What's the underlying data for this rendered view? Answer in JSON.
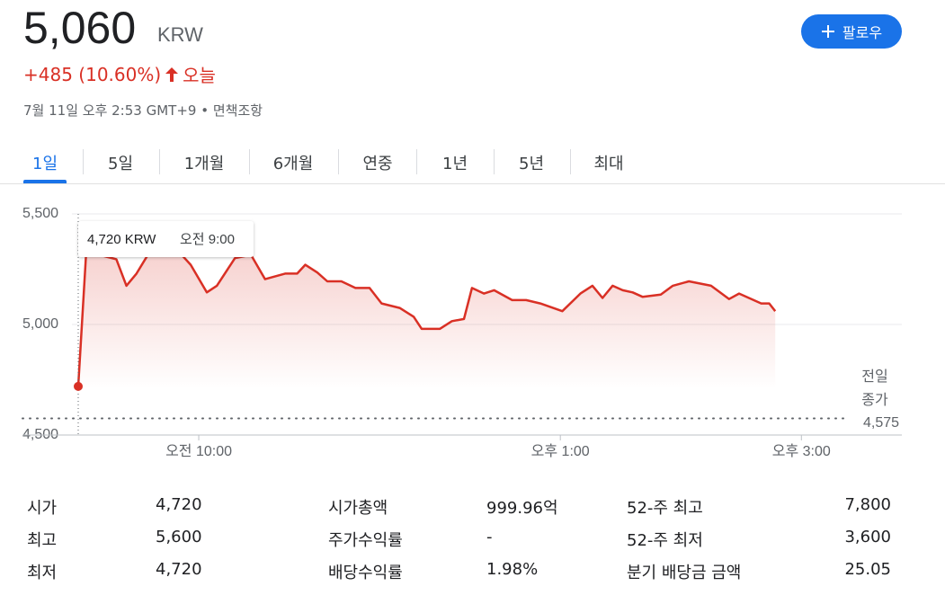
{
  "header": {
    "price": "5,060",
    "currency": "KRW",
    "change": "+485 (10.60%)",
    "period": "오늘",
    "timestamp": "7월 11일 오후 2:53 GMT+9",
    "separator": "•",
    "disclaimer": "면책조항",
    "follow": "팔로우"
  },
  "tabs": {
    "items": [
      "1일",
      "5일",
      "1개월",
      "6개월",
      "연중",
      "1년",
      "5년",
      "최대"
    ],
    "selected": 0
  },
  "chart_data": {
    "type": "line",
    "x": [
      540,
      544,
      559,
      564,
      569,
      575,
      591,
      596,
      604,
      609,
      618,
      626,
      633,
      643,
      649,
      653,
      659,
      664,
      671,
      678,
      685,
      691,
      700,
      707,
      711,
      720,
      726,
      732,
      736,
      742,
      747,
      756,
      763,
      770,
      781,
      790,
      796,
      801,
      806,
      811,
      816,
      821,
      830,
      836,
      844,
      855,
      864,
      869,
      880,
      884,
      887
    ],
    "series": [
      {
        "color": "#d93025",
        "values": [
          4720,
          5330,
          5295,
          5175,
          5230,
          5320,
          5320,
          5270,
          5145,
          5175,
          5300,
          5315,
          5205,
          5230,
          5230,
          5270,
          5235,
          5195,
          5195,
          5165,
          5165,
          5095,
          5075,
          5035,
          4980,
          4980,
          5015,
          5025,
          5165,
          5140,
          5155,
          5110,
          5110,
          5095,
          5060,
          5140,
          5175,
          5120,
          5175,
          5155,
          5145,
          5125,
          5135,
          5175,
          5195,
          5175,
          5115,
          5140,
          5095,
          5095,
          5060
        ]
      }
    ],
    "xlim": [
      540,
      950
    ],
    "ylim": [
      4500,
      5500
    ],
    "xticks": [
      {
        "value": 600,
        "label": "오전 10:00"
      },
      {
        "value": 780,
        "label": "오후 1:00"
      },
      {
        "value": 900,
        "label": "오후 3:00"
      }
    ],
    "yticks": [
      {
        "value": 4500,
        "label": "4,500"
      },
      {
        "value": 5000,
        "label": "5,000"
      },
      {
        "value": 5500,
        "label": "5,500"
      }
    ],
    "grid": true,
    "previous_close": {
      "value": 4575,
      "value_label": "4,575",
      "label_lines": [
        "전일",
        "종가"
      ]
    },
    "tooltip": {
      "price": "4,720 KRW",
      "time": "오전 9:00"
    }
  },
  "stats": {
    "rows": [
      [
        [
          "시가",
          "4,720"
        ],
        [
          "시가총액",
          "999.96억"
        ],
        [
          "52-주 최고",
          "7,800"
        ]
      ],
      [
        [
          "최고",
          "5,600"
        ],
        [
          "주가수익률",
          "-"
        ],
        [
          "52-주 최저",
          "3,600"
        ]
      ],
      [
        [
          "최저",
          "4,720"
        ],
        [
          "배당수익률",
          "1.98%"
        ],
        [
          "분기 배당금 금액",
          "25.05"
        ]
      ]
    ]
  }
}
